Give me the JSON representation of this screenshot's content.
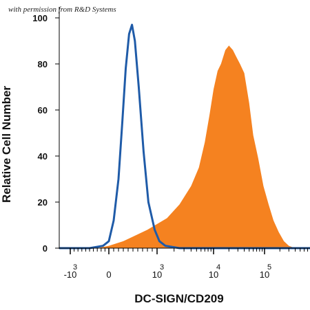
{
  "watermark": "with permission from R&D Systems",
  "chart_data": {
    "type": "area",
    "title": "",
    "xlabel": "DC-SIGN/CD209",
    "ylabel": "Relative Cell Number",
    "x_scale": "biexponential",
    "ylim": [
      0,
      100
    ],
    "yticks": [
      0,
      20,
      40,
      60,
      80,
      100
    ],
    "xticks": [
      {
        "value": -1000,
        "base": "-10",
        "exp": "3"
      },
      {
        "value": 0,
        "base": "0",
        "exp": ""
      },
      {
        "value": 1000,
        "base": "10",
        "exp": "3"
      },
      {
        "value": 10000,
        "base": "10",
        "exp": "4"
      },
      {
        "value": 100000,
        "base": "10",
        "exp": "5"
      }
    ],
    "grid": false,
    "series": [
      {
        "kind": "filled",
        "color": "#F58220",
        "points": [
          [
            -2000,
            0
          ],
          [
            -300,
            0
          ],
          [
            0,
            1
          ],
          [
            300,
            3
          ],
          [
            500,
            5
          ],
          [
            800,
            8
          ],
          [
            1500,
            13
          ],
          [
            2500,
            19
          ],
          [
            4000,
            27
          ],
          [
            5500,
            35
          ],
          [
            7000,
            46
          ],
          [
            8500,
            58
          ],
          [
            10000,
            69
          ],
          [
            12000,
            77
          ],
          [
            14000,
            80
          ],
          [
            17000,
            86
          ],
          [
            20000,
            88
          ],
          [
            24000,
            86
          ],
          [
            28000,
            83
          ],
          [
            33000,
            80
          ],
          [
            40000,
            76
          ],
          [
            50000,
            63
          ],
          [
            60000,
            49
          ],
          [
            75000,
            39
          ],
          [
            95000,
            27
          ],
          [
            120000,
            19
          ],
          [
            150000,
            12
          ],
          [
            190000,
            7
          ],
          [
            240000,
            3
          ],
          [
            300000,
            1
          ],
          [
            400000,
            0
          ],
          [
            1000000,
            0
          ]
        ]
      },
      {
        "kind": "line",
        "color": "#1F5BA8",
        "points": [
          [
            -2000,
            0
          ],
          [
            -500,
            0
          ],
          [
            -150,
            1
          ],
          [
            0,
            3
          ],
          [
            100,
            12
          ],
          [
            200,
            30
          ],
          [
            280,
            55
          ],
          [
            350,
            78
          ],
          [
            420,
            93
          ],
          [
            480,
            97
          ],
          [
            540,
            90
          ],
          [
            620,
            70
          ],
          [
            720,
            42
          ],
          [
            820,
            20
          ],
          [
            950,
            8
          ],
          [
            1100,
            3
          ],
          [
            1400,
            1
          ],
          [
            2500,
            0
          ],
          [
            1000000,
            0
          ]
        ]
      }
    ]
  }
}
